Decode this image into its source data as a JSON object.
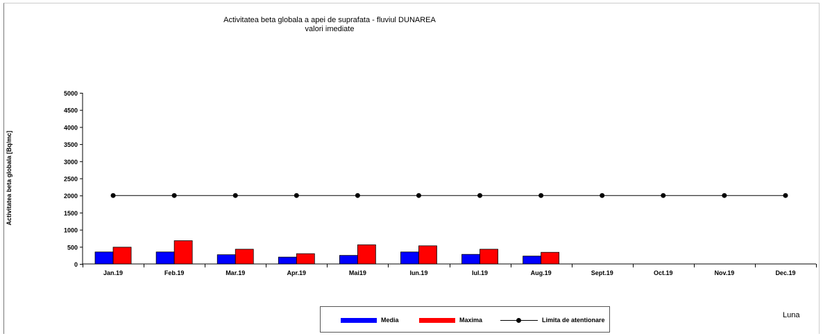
{
  "chart_data": {
    "type": "bar",
    "title": "Activitatea beta globala a apei de suprafata - fluviul DUNAREA",
    "subtitle": "valori imediate",
    "ylabel": "Activitatea beta globala [Bq/mc]",
    "xlabel": "Luna",
    "ylim": [
      0,
      5000
    ],
    "yticks": [
      "0",
      "500",
      "1000",
      "1500",
      "2000",
      "2500",
      "3000",
      "3500",
      "4000",
      "4500",
      "5000"
    ],
    "categories": [
      "Jan.19",
      "Feb.19",
      "Mar.19",
      "Apr.19",
      "Mai19",
      "Iun.19",
      "Iul.19",
      "Aug.19",
      "Sept.19",
      "Oct.19",
      "Nov.19",
      "Dec.19"
    ],
    "series": [
      {
        "name": "Media",
        "kind": "bar",
        "color": "#0000ff",
        "values": [
          350,
          350,
          270,
          200,
          250,
          350,
          280,
          230,
          null,
          null,
          null,
          null
        ]
      },
      {
        "name": "Maxima",
        "kind": "bar",
        "color": "#ff0000",
        "values": [
          490,
          680,
          430,
          300,
          560,
          530,
          430,
          340,
          null,
          null,
          null,
          null
        ]
      },
      {
        "name": "Limita de atentionare",
        "kind": "line",
        "color": "#000000",
        "values": [
          2000,
          2000,
          2000,
          2000,
          2000,
          2000,
          2000,
          2000,
          2000,
          2000,
          2000,
          2000
        ]
      }
    ],
    "legend_position": "bottom-center",
    "grid": false
  }
}
